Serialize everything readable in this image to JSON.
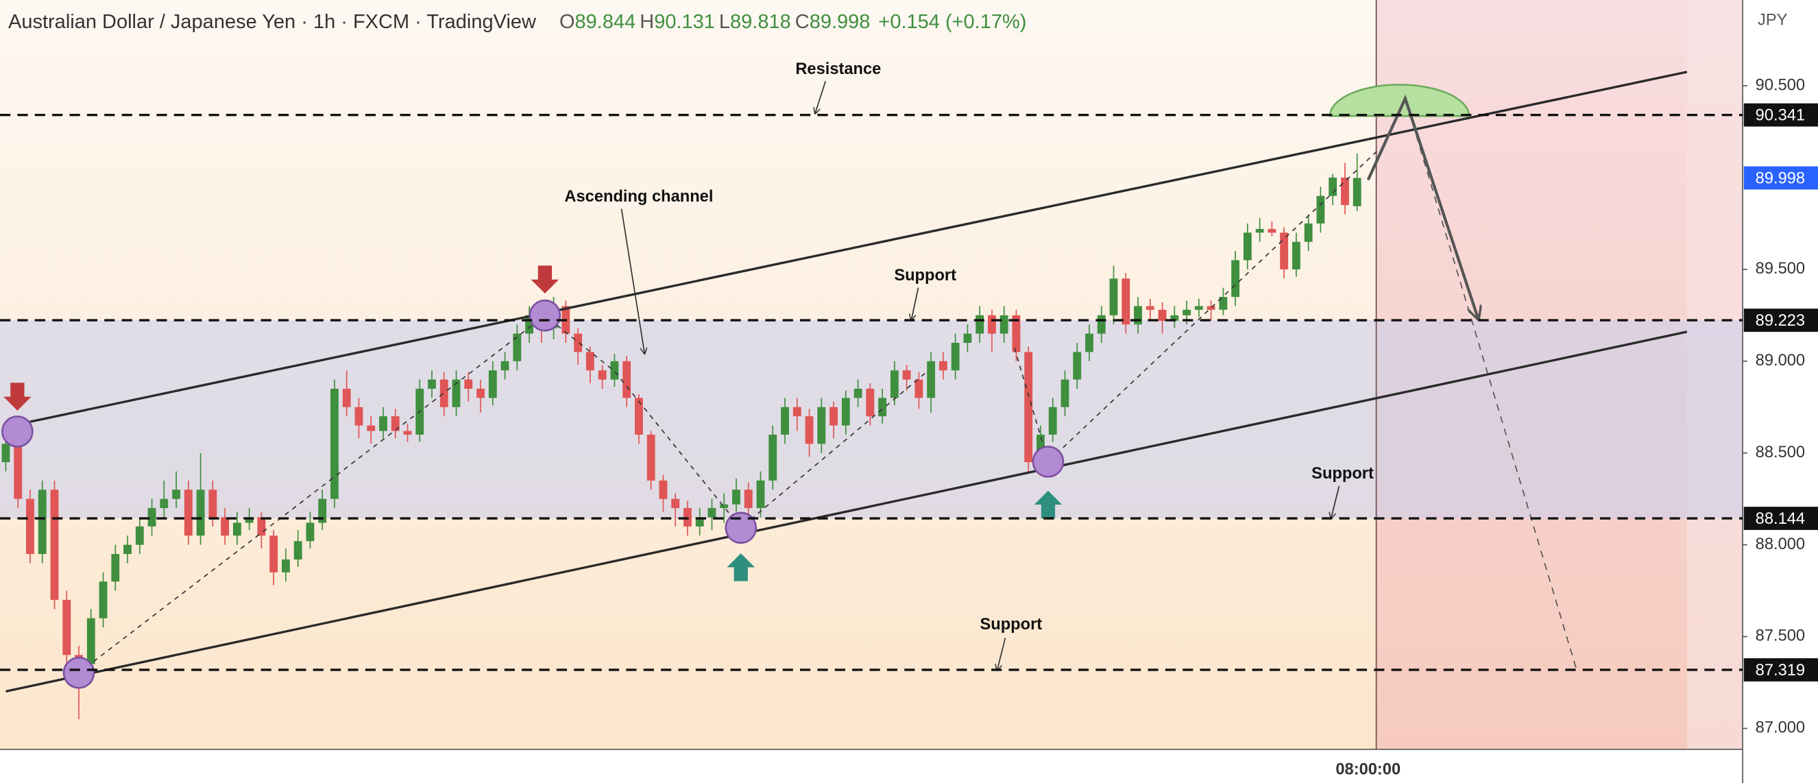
{
  "chart_data": {
    "type": "candlestick",
    "title": "Australian Dollar / Japanese Yen · 1h · FXCM · TradingView",
    "ohlc_legend": [
      {
        "label": "O",
        "value": 89.844
      },
      {
        "label": "H",
        "value": 90.131
      },
      {
        "label": "L",
        "value": 89.818
      },
      {
        "label": "C",
        "value": 89.998
      }
    ],
    "change": "+0.154 (+0.17%)",
    "currency": "JPY",
    "time_label": "08:00:00",
    "last_price": 89.998,
    "levels": [
      90.341,
      89.223,
      88.144,
      87.319
    ],
    "annotations": [
      "Resistance",
      "Ascending channel",
      "Support",
      "Support",
      "Support"
    ],
    "ylim": [
      86.886,
      90.967
    ],
    "yticks": [
      {
        "value": 87,
        "label": "87.000"
      },
      {
        "value": 87.5,
        "label": "87.500"
      },
      {
        "value": 88,
        "label": "88.000"
      },
      {
        "value": 88.5,
        "label": "88.500"
      },
      {
        "value": 89,
        "label": "89.000"
      },
      {
        "value": 89.5,
        "label": "89.500"
      },
      {
        "value": 90.5,
        "label": "90.500"
      }
    ],
    "up_color": "#3f8f3f",
    "down_color": "#e05555",
    "ohlc": [
      [
        88.45,
        88.62,
        88.4,
        88.55
      ],
      [
        88.55,
        88.6,
        88.2,
        88.25
      ],
      [
        88.25,
        88.3,
        87.9,
        87.95
      ],
      [
        87.95,
        88.35,
        87.9,
        88.3
      ],
      [
        88.3,
        88.35,
        87.65,
        87.7
      ],
      [
        87.7,
        87.75,
        87.3,
        87.4
      ],
      [
        87.4,
        87.45,
        87.05,
        87.35
      ],
      [
        87.35,
        87.65,
        87.25,
        87.6
      ],
      [
        87.6,
        87.85,
        87.55,
        87.8
      ],
      [
        87.8,
        88.0,
        87.75,
        87.95
      ],
      [
        87.95,
        88.05,
        87.9,
        88.0
      ],
      [
        88.0,
        88.15,
        87.95,
        88.1
      ],
      [
        88.1,
        88.25,
        88.05,
        88.2
      ],
      [
        88.2,
        88.35,
        88.15,
        88.25
      ],
      [
        88.25,
        88.4,
        88.2,
        88.3
      ],
      [
        88.3,
        88.35,
        88.0,
        88.05
      ],
      [
        88.05,
        88.5,
        88.0,
        88.3
      ],
      [
        88.3,
        88.35,
        88.1,
        88.15
      ],
      [
        88.15,
        88.2,
        88.0,
        88.05
      ],
      [
        88.05,
        88.18,
        88.0,
        88.12
      ],
      [
        88.12,
        88.2,
        88.08,
        88.15
      ],
      [
        88.15,
        88.18,
        87.98,
        88.05
      ],
      [
        88.05,
        88.08,
        87.78,
        87.85
      ],
      [
        87.85,
        87.98,
        87.8,
        87.92
      ],
      [
        87.92,
        88.08,
        87.88,
        88.02
      ],
      [
        88.02,
        88.18,
        87.98,
        88.12
      ],
      [
        88.12,
        88.3,
        88.08,
        88.25
      ],
      [
        88.25,
        88.9,
        88.2,
        88.85
      ],
      [
        88.85,
        88.95,
        88.7,
        88.75
      ],
      [
        88.75,
        88.8,
        88.58,
        88.65
      ],
      [
        88.65,
        88.7,
        88.55,
        88.62
      ],
      [
        88.62,
        88.75,
        88.58,
        88.7
      ],
      [
        88.7,
        88.74,
        88.58,
        88.62
      ],
      [
        88.62,
        88.66,
        88.56,
        88.6
      ],
      [
        88.6,
        88.9,
        88.56,
        88.85
      ],
      [
        88.85,
        88.95,
        88.8,
        88.9
      ],
      [
        88.9,
        88.94,
        88.7,
        88.75
      ],
      [
        88.75,
        88.95,
        88.7,
        88.9
      ],
      [
        88.9,
        88.94,
        88.78,
        88.85
      ],
      [
        88.85,
        88.9,
        88.72,
        88.8
      ],
      [
        88.8,
        89.0,
        88.76,
        88.95
      ],
      [
        88.95,
        89.05,
        88.9,
        89.0
      ],
      [
        89.0,
        89.2,
        88.95,
        89.15
      ],
      [
        89.15,
        89.3,
        89.1,
        89.25
      ],
      [
        89.25,
        89.28,
        89.1,
        89.18
      ],
      [
        89.18,
        89.35,
        89.12,
        89.3
      ],
      [
        89.3,
        89.33,
        89.1,
        89.15
      ],
      [
        89.15,
        89.18,
        88.98,
        89.05
      ],
      [
        89.05,
        89.08,
        88.88,
        88.95
      ],
      [
        88.95,
        88.98,
        88.85,
        88.9
      ],
      [
        88.9,
        89.04,
        88.86,
        89.0
      ],
      [
        89.0,
        89.03,
        88.75,
        88.8
      ],
      [
        88.8,
        88.82,
        88.55,
        88.6
      ],
      [
        88.6,
        88.62,
        88.3,
        88.35
      ],
      [
        88.35,
        88.38,
        88.18,
        88.25
      ],
      [
        88.25,
        88.28,
        88.1,
        88.2
      ],
      [
        88.2,
        88.24,
        88.05,
        88.1
      ],
      [
        88.1,
        88.2,
        88.05,
        88.15
      ],
      [
        88.15,
        88.25,
        88.08,
        88.2
      ],
      [
        88.2,
        88.28,
        88.12,
        88.22
      ],
      [
        88.22,
        88.36,
        88.18,
        88.3
      ],
      [
        88.3,
        88.34,
        88.14,
        88.2
      ],
      [
        88.2,
        88.4,
        88.15,
        88.35
      ],
      [
        88.35,
        88.65,
        88.3,
        88.6
      ],
      [
        88.6,
        88.8,
        88.55,
        88.75
      ],
      [
        88.75,
        88.8,
        88.62,
        88.7
      ],
      [
        88.7,
        88.74,
        88.48,
        88.55
      ],
      [
        88.55,
        88.8,
        88.5,
        88.75
      ],
      [
        88.75,
        88.78,
        88.58,
        88.65
      ],
      [
        88.65,
        88.84,
        88.6,
        88.8
      ],
      [
        88.8,
        88.9,
        88.75,
        88.85
      ],
      [
        88.85,
        88.88,
        88.65,
        88.7
      ],
      [
        88.7,
        88.85,
        88.66,
        88.8
      ],
      [
        88.8,
        89.0,
        88.76,
        88.95
      ],
      [
        88.95,
        88.98,
        88.84,
        88.9
      ],
      [
        88.9,
        88.94,
        88.74,
        88.8
      ],
      [
        88.8,
        89.05,
        88.72,
        89.0
      ],
      [
        89.0,
        89.05,
        88.9,
        88.95
      ],
      [
        88.95,
        89.15,
        88.9,
        89.1
      ],
      [
        89.1,
        89.2,
        89.05,
        89.15
      ],
      [
        89.15,
        89.3,
        89.1,
        89.25
      ],
      [
        89.25,
        89.28,
        89.05,
        89.15
      ],
      [
        89.15,
        89.3,
        89.1,
        89.25
      ],
      [
        89.25,
        89.28,
        89.0,
        89.05
      ],
      [
        89.05,
        89.08,
        88.4,
        88.45
      ],
      [
        88.45,
        88.65,
        88.4,
        88.6
      ],
      [
        88.6,
        88.8,
        88.56,
        88.75
      ],
      [
        88.75,
        88.95,
        88.7,
        88.9
      ],
      [
        88.9,
        89.1,
        88.85,
        89.05
      ],
      [
        89.05,
        89.2,
        89.0,
        89.15
      ],
      [
        89.15,
        89.3,
        89.1,
        89.25
      ],
      [
        89.25,
        89.52,
        89.2,
        89.45
      ],
      [
        89.45,
        89.48,
        89.15,
        89.2
      ],
      [
        89.2,
        89.35,
        89.15,
        89.3
      ],
      [
        89.3,
        89.34,
        89.22,
        89.28
      ],
      [
        89.28,
        89.32,
        89.15,
        89.22
      ],
      [
        89.22,
        89.3,
        89.18,
        89.25
      ],
      [
        89.25,
        89.33,
        89.2,
        89.28
      ],
      [
        89.28,
        89.34,
        89.24,
        89.3
      ],
      [
        89.3,
        89.33,
        89.22,
        89.28
      ],
      [
        89.28,
        89.4,
        89.25,
        89.35
      ],
      [
        89.35,
        89.6,
        89.3,
        89.55
      ],
      [
        89.55,
        89.75,
        89.5,
        89.7
      ],
      [
        89.7,
        89.78,
        89.65,
        89.72
      ],
      [
        89.72,
        89.76,
        89.68,
        89.7
      ],
      [
        89.7,
        89.73,
        89.45,
        89.5
      ],
      [
        89.5,
        89.7,
        89.46,
        89.65
      ],
      [
        89.65,
        89.8,
        89.6,
        89.75
      ],
      [
        89.75,
        89.95,
        89.7,
        89.9
      ],
      [
        89.9,
        90.02,
        89.85,
        90.0
      ],
      [
        90.0,
        90.08,
        89.8,
        89.85
      ],
      [
        89.844,
        90.131,
        89.818,
        89.998
      ]
    ]
  }
}
